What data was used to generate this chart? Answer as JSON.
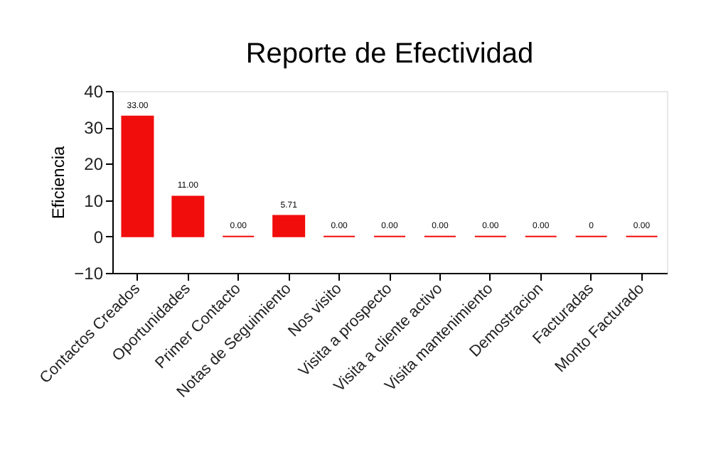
{
  "chart_data": {
    "type": "bar",
    "title": "Reporte de Efectividad",
    "ylabel": "Eficiencia",
    "categories": [
      "Contactos Creados",
      "Oportunidades",
      "Primer Contacto",
      "Notas de Seguimiento",
      "Nos visito",
      "Visita a prospecto",
      "Visita a cliente activo",
      "Visita mantenimiento",
      "Demostracion",
      "Facturadas",
      "Monto Facturado"
    ],
    "values": [
      33,
      11,
      0,
      5.71,
      0,
      0,
      0,
      0,
      0,
      0,
      0
    ],
    "value_labels": [
      "33.00",
      "11.00",
      "0.00",
      "5.71",
      "0.00",
      "0.00",
      "0.00",
      "0.00",
      "0.00",
      "0",
      "0.00"
    ],
    "color": "#f20d0d",
    "ylim": [
      -10,
      40
    ],
    "yticks": [
      -10,
      0,
      10,
      20,
      30,
      40
    ],
    "grid": false
  }
}
